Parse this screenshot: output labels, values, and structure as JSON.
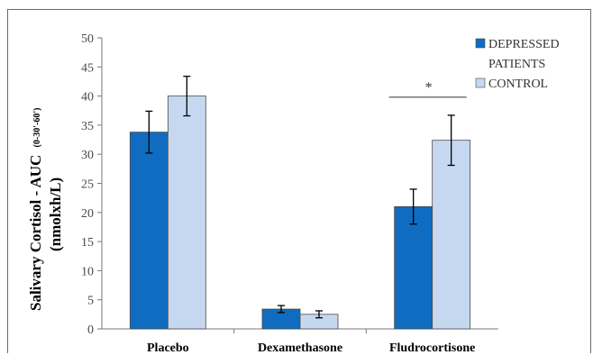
{
  "chart_data": {
    "type": "bar",
    "title": "",
    "xlabel": "",
    "ylabel_main": "Salivary Cortisol - AUC",
    "ylabel_sub": "(0-30'-60')",
    "ylabel_unit": "(nmolxh/L)",
    "ylim": [
      0,
      50
    ],
    "yticks": [
      0,
      5,
      10,
      15,
      20,
      25,
      30,
      35,
      40,
      45,
      50
    ],
    "categories": [
      "Placebo",
      "Dexamethasone",
      "Fludrocortisone"
    ],
    "series": [
      {
        "name": "DEPRESSED PATIENTS",
        "values": [
          33.8,
          3.4,
          21.0
        ],
        "errors": [
          3.6,
          0.6,
          3.0
        ],
        "color": "#0f6cc0"
      },
      {
        "name": "CONTROL",
        "values": [
          40.0,
          2.5,
          32.4
        ],
        "errors": [
          3.4,
          0.6,
          4.3
        ],
        "color": "#c5d8ef"
      }
    ],
    "legend": {
      "position": "top-right",
      "entries": [
        "DEPRESSED",
        "PATIENTS",
        "CONTROL"
      ]
    },
    "annotation": {
      "text": "*",
      "category": "Fludrocortisone",
      "y": 39.8
    },
    "grid": false
  }
}
